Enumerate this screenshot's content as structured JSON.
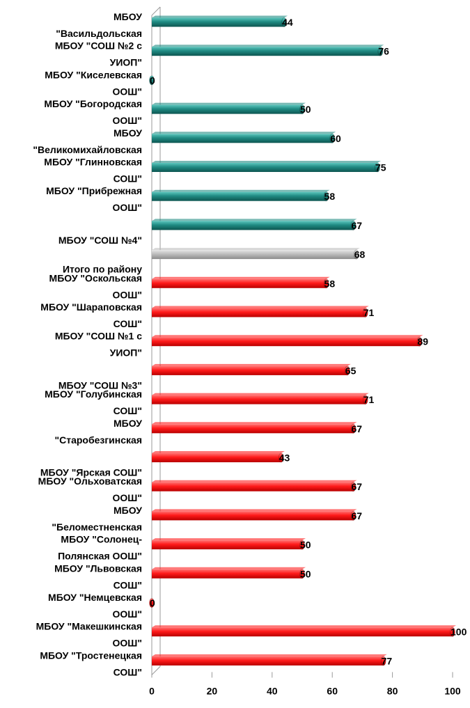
{
  "chart_data": {
    "type": "bar",
    "orientation": "horizontal",
    "categories": [
      [
        "МБОУ",
        "\"Васильдольская"
      ],
      [
        "МБОУ \"СОШ №2 с",
        "УИОП\""
      ],
      [
        "МБОУ \"Киселевская",
        "ООШ\""
      ],
      [
        "МБОУ \"Богородская",
        "ООШ\""
      ],
      [
        "МБОУ",
        "\"Великомихайловская"
      ],
      [
        "МБОУ \"Глинновская",
        "СОШ\""
      ],
      [
        "МБОУ \"Прибрежная",
        "ООШ\""
      ],
      [
        "МБОУ \"СОШ №4\""
      ],
      [
        "Итого по району"
      ],
      [
        "МБОУ \"Оскольская",
        "ООШ\""
      ],
      [
        "МБОУ \"Шараповская",
        "СОШ\""
      ],
      [
        "МБОУ \"СОШ №1 с",
        "УИОП\""
      ],
      [
        "МБОУ \"СОШ №3\""
      ],
      [
        "МБОУ \"Голубинская",
        "СОШ\""
      ],
      [
        "МБОУ",
        "\"Старобезгинская"
      ],
      [
        "МБОУ \"Ярская СОШ\""
      ],
      [
        "МБОУ \"Ольховатская",
        "ООШ\""
      ],
      [
        "МБОУ",
        "\"Беломестненская"
      ],
      [
        "МБОУ \"Солонец-",
        "Полянская ООШ\""
      ],
      [
        "МБОУ \"Львовская",
        "СОШ\""
      ],
      [
        "МБОУ \"Немцевская",
        "ООШ\""
      ],
      [
        "МБОУ \"Макешкинская",
        "ООШ\""
      ],
      [
        "МБОУ \"Тростенецкая",
        "СОШ\""
      ]
    ],
    "values": [
      44,
      76,
      0,
      50,
      60,
      75,
      58,
      67,
      68,
      58,
      71,
      89,
      65,
      71,
      67,
      43,
      67,
      67,
      50,
      50,
      0,
      100,
      77
    ],
    "value_labels": [
      "44",
      "76",
      "0",
      "50",
      "60",
      "75",
      "58",
      "67",
      "68",
      "58",
      "71",
      "89",
      "65",
      "71",
      "67",
      "43",
      "67",
      "67",
      "50",
      "50",
      "0",
      "100",
      "77"
    ],
    "groups": [
      "teal",
      "teal",
      "teal",
      "teal",
      "teal",
      "teal",
      "teal",
      "teal",
      "gray",
      "red",
      "red",
      "red",
      "red",
      "red",
      "red",
      "red",
      "red",
      "red",
      "red",
      "red",
      "red",
      "red",
      "red"
    ],
    "colors": {
      "teal": "#1f8a82",
      "gray": "#bdbdbd",
      "red": "#ff1a1a"
    },
    "xlim": [
      0,
      100
    ],
    "x_ticks": [
      0,
      20,
      40,
      60,
      80,
      100
    ],
    "x_tick_labels": [
      "0",
      "20",
      "40",
      "60",
      "80",
      "100"
    ],
    "grid": false,
    "legend": "none",
    "title": "",
    "xlabel": "",
    "ylabel": ""
  }
}
